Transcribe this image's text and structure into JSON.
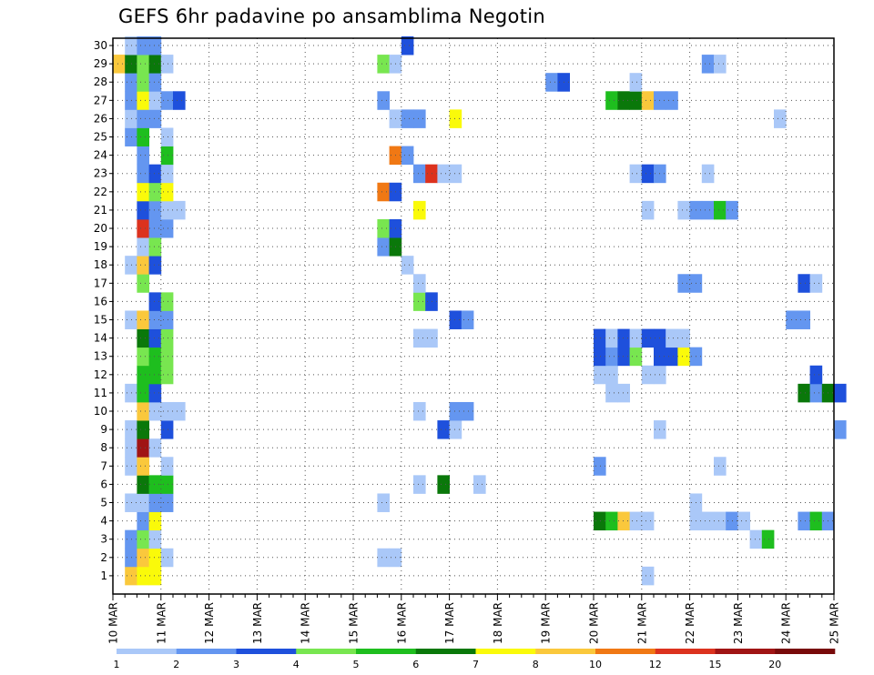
{
  "chart_data": {
    "type": "heatmap",
    "title": "GEFS 6hr padavine po ansamblima Negotin",
    "y_members": [
      1,
      2,
      3,
      4,
      5,
      6,
      7,
      8,
      9,
      10,
      11,
      12,
      13,
      14,
      15,
      16,
      17,
      18,
      19,
      20,
      21,
      22,
      23,
      24,
      25,
      26,
      27,
      28,
      29,
      30
    ],
    "x_labels": [
      "10 MAR",
      "11 MAR",
      "12 MAR",
      "13 MAR",
      "14 MAR",
      "15 MAR",
      "16 MAR",
      "17 MAR",
      "18 MAR",
      "19 MAR",
      "20 MAR",
      "21 MAR",
      "22 MAR",
      "23 MAR",
      "24 MAR",
      "25 MAR"
    ],
    "time_steps_per_day": 4,
    "legend": {
      "labels": [
        "1",
        "2",
        "3",
        "4",
        "5",
        "6",
        "7",
        "8",
        "10",
        "12",
        "15",
        "20"
      ],
      "colors": [
        "#aac8f8",
        "#6496f0",
        "#1e50dc",
        "#78e650",
        "#1ebe1e",
        "#0a780a",
        "#fafa0a",
        "#fac83c",
        "#f07814",
        "#dc321e",
        "#a01414",
        "#780a0a"
      ]
    },
    "cells": [
      [
        1,
        1,
        "#fac83c"
      ],
      [
        1,
        2,
        "#fafa0a"
      ],
      [
        1,
        3,
        "#fafa0a"
      ],
      [
        1,
        44,
        "#aac8f8"
      ],
      [
        2,
        1,
        "#6496f0"
      ],
      [
        2,
        2,
        "#fac83c"
      ],
      [
        2,
        3,
        "#fafa0a"
      ],
      [
        2,
        4,
        "#aac8f8"
      ],
      [
        2,
        22,
        "#aac8f8"
      ],
      [
        2,
        23,
        "#aac8f8"
      ],
      [
        3,
        1,
        "#6496f0"
      ],
      [
        3,
        2,
        "#78e650"
      ],
      [
        3,
        3,
        "#aac8f8"
      ],
      [
        3,
        53,
        "#aac8f8"
      ],
      [
        3,
        54,
        "#1ebe1e"
      ],
      [
        4,
        2,
        "#6496f0"
      ],
      [
        4,
        3,
        "#fafa0a"
      ],
      [
        4,
        40,
        "#0a780a"
      ],
      [
        4,
        41,
        "#1ebe1e"
      ],
      [
        4,
        42,
        "#fac83c"
      ],
      [
        4,
        43,
        "#aac8f8"
      ],
      [
        4,
        44,
        "#aac8f8"
      ],
      [
        4,
        48,
        "#aac8f8"
      ],
      [
        4,
        49,
        "#aac8f8"
      ],
      [
        4,
        50,
        "#aac8f8"
      ],
      [
        4,
        51,
        "#6496f0"
      ],
      [
        4,
        52,
        "#aac8f8"
      ],
      [
        4,
        57,
        "#6496f0"
      ],
      [
        4,
        58,
        "#1ebe1e"
      ],
      [
        4,
        59,
        "#6496f0"
      ],
      [
        5,
        1,
        "#aac8f8"
      ],
      [
        5,
        2,
        "#aac8f8"
      ],
      [
        5,
        3,
        "#6496f0"
      ],
      [
        5,
        4,
        "#6496f0"
      ],
      [
        5,
        22,
        "#aac8f8"
      ],
      [
        5,
        48,
        "#aac8f8"
      ],
      [
        6,
        2,
        "#0a780a"
      ],
      [
        6,
        3,
        "#1ebe1e"
      ],
      [
        6,
        4,
        "#1ebe1e"
      ],
      [
        6,
        25,
        "#aac8f8"
      ],
      [
        6,
        27,
        "#0a780a"
      ],
      [
        6,
        30,
        "#aac8f8"
      ],
      [
        7,
        1,
        "#aac8f8"
      ],
      [
        7,
        2,
        "#fac83c"
      ],
      [
        7,
        4,
        "#aac8f8"
      ],
      [
        7,
        40,
        "#6496f0"
      ],
      [
        7,
        50,
        "#aac8f8"
      ],
      [
        8,
        1,
        "#aac8f8"
      ],
      [
        8,
        2,
        "#a01414"
      ],
      [
        8,
        3,
        "#aac8f8"
      ],
      [
        9,
        1,
        "#aac8f8"
      ],
      [
        9,
        2,
        "#0a780a"
      ],
      [
        9,
        4,
        "#1e50dc"
      ],
      [
        9,
        27,
        "#1e50dc"
      ],
      [
        9,
        28,
        "#aac8f8"
      ],
      [
        9,
        45,
        "#aac8f8"
      ],
      [
        9,
        60,
        "#6496f0"
      ],
      [
        10,
        2,
        "#fac83c"
      ],
      [
        10,
        3,
        "#aac8f8"
      ],
      [
        10,
        4,
        "#aac8f8"
      ],
      [
        10,
        5,
        "#aac8f8"
      ],
      [
        10,
        25,
        "#aac8f8"
      ],
      [
        10,
        28,
        "#6496f0"
      ],
      [
        10,
        29,
        "#6496f0"
      ],
      [
        11,
        1,
        "#aac8f8"
      ],
      [
        11,
        2,
        "#1ebe1e"
      ],
      [
        11,
        3,
        "#1e50dc"
      ],
      [
        11,
        41,
        "#aac8f8"
      ],
      [
        11,
        42,
        "#aac8f8"
      ],
      [
        11,
        57,
        "#0a780a"
      ],
      [
        11,
        58,
        "#6496f0"
      ],
      [
        11,
        59,
        "#0a780a"
      ],
      [
        11,
        60,
        "#1e50dc"
      ],
      [
        12,
        2,
        "#1ebe1e"
      ],
      [
        12,
        3,
        "#1ebe1e"
      ],
      [
        12,
        4,
        "#78e650"
      ],
      [
        12,
        40,
        "#aac8f8"
      ],
      [
        12,
        41,
        "#aac8f8"
      ],
      [
        12,
        44,
        "#aac8f8"
      ],
      [
        12,
        45,
        "#aac8f8"
      ],
      [
        12,
        58,
        "#1e50dc"
      ],
      [
        13,
        2,
        "#78e650"
      ],
      [
        13,
        3,
        "#1ebe1e"
      ],
      [
        13,
        4,
        "#78e650"
      ],
      [
        13,
        40,
        "#1e50dc"
      ],
      [
        13,
        41,
        "#6496f0"
      ],
      [
        13,
        42,
        "#1e50dc"
      ],
      [
        13,
        43,
        "#78e650"
      ],
      [
        13,
        45,
        "#1e50dc"
      ],
      [
        13,
        46,
        "#1e50dc"
      ],
      [
        13,
        47,
        "#fafa0a"
      ],
      [
        13,
        48,
        "#6496f0"
      ],
      [
        14,
        2,
        "#0a780a"
      ],
      [
        14,
        3,
        "#1e50dc"
      ],
      [
        14,
        4,
        "#78e650"
      ],
      [
        14,
        25,
        "#aac8f8"
      ],
      [
        14,
        26,
        "#aac8f8"
      ],
      [
        14,
        40,
        "#1e50dc"
      ],
      [
        14,
        41,
        "#aac8f8"
      ],
      [
        14,
        42,
        "#1e50dc"
      ],
      [
        14,
        43,
        "#aac8f8"
      ],
      [
        14,
        44,
        "#1e50dc"
      ],
      [
        14,
        45,
        "#1e50dc"
      ],
      [
        14,
        46,
        "#aac8f8"
      ],
      [
        14,
        47,
        "#aac8f8"
      ],
      [
        15,
        1,
        "#aac8f8"
      ],
      [
        15,
        2,
        "#fac83c"
      ],
      [
        15,
        3,
        "#6496f0"
      ],
      [
        15,
        4,
        "#6496f0"
      ],
      [
        15,
        28,
        "#1e50dc"
      ],
      [
        15,
        29,
        "#6496f0"
      ],
      [
        15,
        56,
        "#6496f0"
      ],
      [
        15,
        57,
        "#6496f0"
      ],
      [
        16,
        3,
        "#1e50dc"
      ],
      [
        16,
        4,
        "#78e650"
      ],
      [
        16,
        25,
        "#78e650"
      ],
      [
        16,
        26,
        "#1e50dc"
      ],
      [
        17,
        2,
        "#78e650"
      ],
      [
        17,
        25,
        "#aac8f8"
      ],
      [
        17,
        47,
        "#6496f0"
      ],
      [
        17,
        48,
        "#6496f0"
      ],
      [
        17,
        57,
        "#1e50dc"
      ],
      [
        17,
        58,
        "#aac8f8"
      ],
      [
        18,
        1,
        "#aac8f8"
      ],
      [
        18,
        2,
        "#fac83c"
      ],
      [
        18,
        3,
        "#1e50dc"
      ],
      [
        18,
        24,
        "#aac8f8"
      ],
      [
        19,
        2,
        "#aac8f8"
      ],
      [
        19,
        3,
        "#78e650"
      ],
      [
        19,
        22,
        "#6496f0"
      ],
      [
        19,
        23,
        "#0a780a"
      ],
      [
        20,
        2,
        "#dc321e"
      ],
      [
        20,
        3,
        "#6496f0"
      ],
      [
        20,
        4,
        "#6496f0"
      ],
      [
        20,
        22,
        "#78e650"
      ],
      [
        20,
        23,
        "#1e50dc"
      ],
      [
        21,
        2,
        "#1e50dc"
      ],
      [
        21,
        3,
        "#6496f0"
      ],
      [
        21,
        4,
        "#aac8f8"
      ],
      [
        21,
        5,
        "#aac8f8"
      ],
      [
        21,
        25,
        "#fafa0a"
      ],
      [
        21,
        44,
        "#aac8f8"
      ],
      [
        21,
        47,
        "#aac8f8"
      ],
      [
        21,
        48,
        "#6496f0"
      ],
      [
        21,
        49,
        "#6496f0"
      ],
      [
        21,
        50,
        "#1ebe1e"
      ],
      [
        21,
        51,
        "#6496f0"
      ],
      [
        22,
        2,
        "#fafa0a"
      ],
      [
        22,
        3,
        "#78e650"
      ],
      [
        22,
        4,
        "#fafa0a"
      ],
      [
        22,
        22,
        "#f07814"
      ],
      [
        22,
        23,
        "#1e50dc"
      ],
      [
        23,
        2,
        "#6496f0"
      ],
      [
        23,
        3,
        "#1e50dc"
      ],
      [
        23,
        4,
        "#aac8f8"
      ],
      [
        23,
        25,
        "#6496f0"
      ],
      [
        23,
        26,
        "#dc321e"
      ],
      [
        23,
        27,
        "#aac8f8"
      ],
      [
        23,
        28,
        "#aac8f8"
      ],
      [
        23,
        43,
        "#aac8f8"
      ],
      [
        23,
        44,
        "#1e50dc"
      ],
      [
        23,
        45,
        "#6496f0"
      ],
      [
        23,
        49,
        "#aac8f8"
      ],
      [
        24,
        2,
        "#6496f0"
      ],
      [
        24,
        4,
        "#1ebe1e"
      ],
      [
        24,
        23,
        "#f07814"
      ],
      [
        24,
        24,
        "#6496f0"
      ],
      [
        25,
        1,
        "#6496f0"
      ],
      [
        25,
        2,
        "#1ebe1e"
      ],
      [
        25,
        4,
        "#aac8f8"
      ],
      [
        26,
        1,
        "#aac8f8"
      ],
      [
        26,
        2,
        "#6496f0"
      ],
      [
        26,
        3,
        "#6496f0"
      ],
      [
        26,
        23,
        "#aac8f8"
      ],
      [
        26,
        24,
        "#6496f0"
      ],
      [
        26,
        25,
        "#6496f0"
      ],
      [
        26,
        28,
        "#fafa0a"
      ],
      [
        26,
        55,
        "#aac8f8"
      ],
      [
        27,
        1,
        "#6496f0"
      ],
      [
        27,
        2,
        "#fafa0a"
      ],
      [
        27,
        3,
        "#aac8f8"
      ],
      [
        27,
        4,
        "#6496f0"
      ],
      [
        27,
        5,
        "#1e50dc"
      ],
      [
        27,
        22,
        "#6496f0"
      ],
      [
        27,
        41,
        "#1ebe1e"
      ],
      [
        27,
        42,
        "#0a780a"
      ],
      [
        27,
        43,
        "#0a780a"
      ],
      [
        27,
        44,
        "#fac83c"
      ],
      [
        27,
        45,
        "#6496f0"
      ],
      [
        27,
        46,
        "#6496f0"
      ],
      [
        28,
        1,
        "#6496f0"
      ],
      [
        28,
        2,
        "#78e650"
      ],
      [
        28,
        3,
        "#6496f0"
      ],
      [
        28,
        36,
        "#6496f0"
      ],
      [
        28,
        37,
        "#1e50dc"
      ],
      [
        28,
        43,
        "#aac8f8"
      ],
      [
        29,
        0,
        "#fac83c"
      ],
      [
        29,
        1,
        "#0a780a"
      ],
      [
        29,
        2,
        "#78e650"
      ],
      [
        29,
        3,
        "#0a780a"
      ],
      [
        29,
        4,
        "#aac8f8"
      ],
      [
        29,
        22,
        "#78e650"
      ],
      [
        29,
        23,
        "#aac8f8"
      ],
      [
        29,
        49,
        "#6496f0"
      ],
      [
        29,
        50,
        "#aac8f8"
      ],
      [
        30,
        1,
        "#aac8f8"
      ],
      [
        30,
        2,
        "#6496f0"
      ],
      [
        30,
        3,
        "#6496f0"
      ],
      [
        30,
        24,
        "#1e50dc"
      ]
    ]
  }
}
